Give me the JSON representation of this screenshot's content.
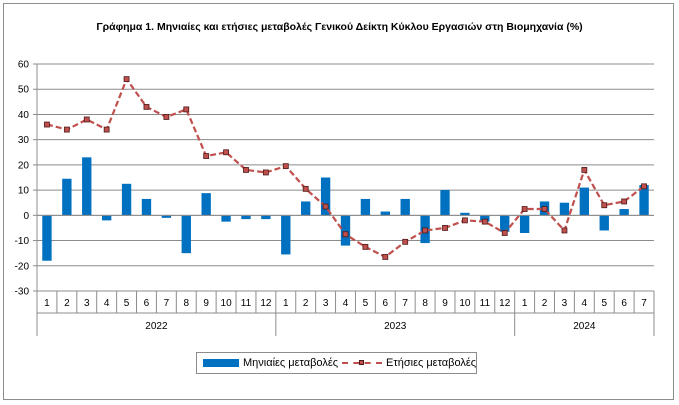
{
  "chart_data": {
    "type": "bar",
    "title": "Γράφημα 1. Μηνιαίες και ετήσιες μεταβολές  Γενικού Δείκτη Κύκλου Εργασιών στη Βιομηχανία  (%)",
    "xlabel": "",
    "ylabel": "",
    "ylim": [
      -30,
      60
    ],
    "yticks": [
      -30,
      -20,
      -10,
      0,
      10,
      20,
      30,
      40,
      50,
      60
    ],
    "grid": true,
    "legend_position": "bottom",
    "categories": [
      "1",
      "2",
      "3",
      "4",
      "5",
      "6",
      "7",
      "8",
      "9",
      "10",
      "11",
      "12",
      "1",
      "2",
      "3",
      "4",
      "5",
      "6",
      "7",
      "8",
      "9",
      "10",
      "11",
      "12",
      "1",
      "2",
      "3",
      "4",
      "5",
      "6",
      "7"
    ],
    "year_groups": [
      {
        "label": "2022",
        "count": 12
      },
      {
        "label": "2023",
        "count": 12
      },
      {
        "label": "2024",
        "count": 7
      }
    ],
    "series": [
      {
        "name": "Μηνιαίες μεταβολές",
        "type": "bar",
        "color": "#0070c0",
        "values": [
          -18,
          14.5,
          23,
          -2,
          12.5,
          6.5,
          -1,
          -15,
          8.8,
          -2.5,
          -1.5,
          -1.5,
          -15.5,
          5.5,
          15,
          -12,
          6.5,
          1.5,
          6.5,
          -11,
          10,
          1,
          -2.5,
          -6.5,
          -7,
          5.5,
          5,
          11,
          -6,
          2.5,
          12
        ]
      },
      {
        "name": "Ετήσιες μεταβολές",
        "type": "line",
        "color": "#c0504d",
        "values": [
          36,
          34,
          38,
          34,
          54,
          43,
          39,
          42,
          23.5,
          25,
          18,
          17,
          19.5,
          10.5,
          3.5,
          -7.5,
          -12.5,
          -16.5,
          -10.5,
          -6,
          -5,
          -2,
          -2.5,
          -7,
          2.5,
          2.5,
          -6,
          18,
          4,
          5.5,
          11.5
        ]
      }
    ]
  }
}
